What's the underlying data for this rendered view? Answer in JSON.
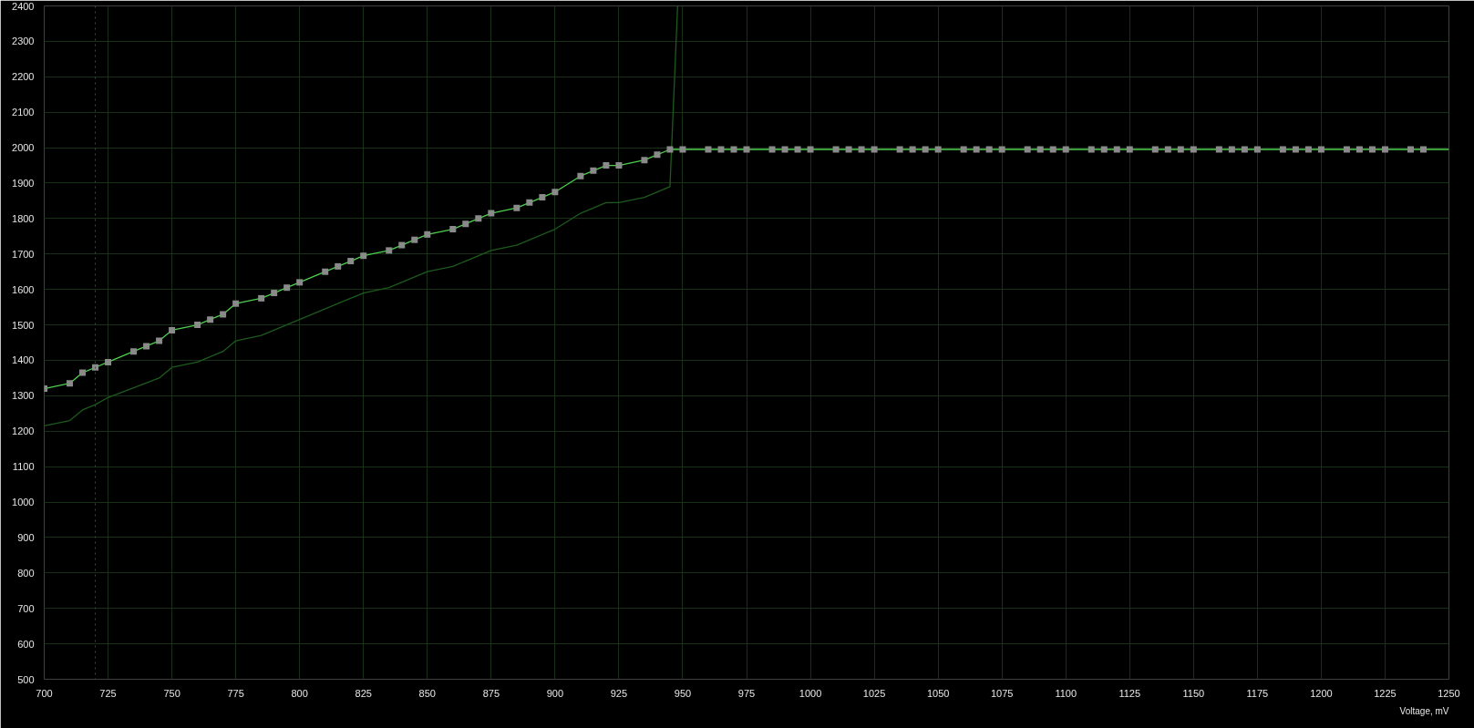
{
  "chart_data": {
    "type": "line",
    "xlabel": "Voltage, mV",
    "xlim": [
      700,
      1250
    ],
    "ylim": [
      500,
      2400
    ],
    "xticks": [
      700,
      725,
      750,
      775,
      800,
      825,
      850,
      875,
      900,
      925,
      950,
      975,
      1000,
      1025,
      1050,
      1075,
      1100,
      1125,
      1150,
      1175,
      1200,
      1225,
      1250
    ],
    "yticks": [
      500,
      600,
      700,
      800,
      900,
      1000,
      1100,
      1200,
      1300,
      1400,
      1500,
      1600,
      1700,
      1800,
      1900,
      2000,
      2100,
      2200,
      2300,
      2400
    ],
    "grid": true,
    "ref_lines": [
      {
        "axis": "x",
        "value": 720,
        "color": "#3c4a3c",
        "line_style": "dotted"
      }
    ],
    "series": [
      {
        "color": "#1d5a1d",
        "x": [
          700,
          710,
          715,
          720,
          725,
          745,
          750,
          760,
          770,
          775,
          785,
          800,
          815,
          825,
          835,
          850,
          860,
          875,
          885,
          900,
          910,
          920,
          925,
          935,
          945,
          948
        ],
        "values": [
          1215,
          1230,
          1260,
          1275,
          1295,
          1350,
          1380,
          1395,
          1425,
          1455,
          1470,
          1515,
          1560,
          1590,
          1605,
          1650,
          1665,
          1710,
          1725,
          1770,
          1815,
          1845,
          1845,
          1860,
          1890,
          2400
        ]
      },
      {
        "color": "#4fcf4f",
        "x": [
          700,
          710,
          715,
          720,
          725,
          735,
          740,
          745,
          750,
          760,
          765,
          770,
          775,
          785,
          790,
          795,
          800,
          810,
          815,
          820,
          825,
          835,
          840,
          845,
          850,
          860,
          865,
          870,
          875,
          885,
          890,
          895,
          900,
          910,
          915,
          920,
          925,
          935,
          940,
          945,
          950,
          960,
          965,
          970,
          975,
          985,
          990,
          995,
          1000,
          1010,
          1015,
          1020,
          1025,
          1035,
          1040,
          1045,
          1050,
          1060,
          1065,
          1070,
          1075,
          1085,
          1090,
          1095,
          1100,
          1110,
          1115,
          1120,
          1125,
          1135,
          1140,
          1145,
          1150,
          1160,
          1165,
          1170,
          1175,
          1185,
          1190,
          1195,
          1200,
          1210,
          1215,
          1220,
          1225,
          1235,
          1240,
          1250
        ],
        "values": [
          1320,
          1335,
          1365,
          1380,
          1395,
          1425,
          1440,
          1455,
          1485,
          1500,
          1515,
          1530,
          1560,
          1575,
          1590,
          1605,
          1620,
          1650,
          1665,
          1680,
          1695,
          1710,
          1725,
          1740,
          1755,
          1770,
          1785,
          1800,
          1815,
          1830,
          1845,
          1860,
          1875,
          1920,
          1935,
          1950,
          1950,
          1965,
          1980,
          1995,
          1995,
          1995,
          1995,
          1995,
          1995,
          1995,
          1995,
          1995,
          1995,
          1995,
          1995,
          1995,
          1995,
          1995,
          1995,
          1995,
          1995,
          1995,
          1995,
          1995,
          1995,
          1995,
          1995,
          1995,
          1995,
          1995,
          1995,
          1995,
          1995,
          1995,
          1995,
          1995,
          1995,
          1995,
          1995,
          1995,
          1995,
          1995,
          1995,
          1995,
          1995,
          1995,
          1995,
          1995,
          1995,
          1995,
          1995,
          1995
        ]
      },
      {
        "type": "scatter",
        "color": "#8a8a8a",
        "marker": "square",
        "x": [
          700,
          710,
          715,
          720,
          725,
          735,
          740,
          745,
          750,
          760,
          765,
          770,
          775,
          785,
          790,
          795,
          800,
          810,
          815,
          820,
          825,
          835,
          840,
          845,
          850,
          860,
          865,
          870,
          875,
          885,
          890,
          895,
          900,
          910,
          915,
          920,
          925,
          935,
          940,
          945,
          950,
          960,
          965,
          970,
          975,
          985,
          990,
          995,
          1000,
          1010,
          1015,
          1020,
          1025,
          1035,
          1040,
          1045,
          1050,
          1060,
          1065,
          1070,
          1075,
          1085,
          1090,
          1095,
          1100,
          1110,
          1115,
          1120,
          1125,
          1135,
          1140,
          1145,
          1150,
          1160,
          1165,
          1170,
          1175,
          1185,
          1190,
          1195,
          1200,
          1210,
          1215,
          1220,
          1225,
          1235,
          1240
        ],
        "values": [
          1320,
          1335,
          1365,
          1380,
          1395,
          1425,
          1440,
          1455,
          1485,
          1500,
          1515,
          1530,
          1560,
          1575,
          1590,
          1605,
          1620,
          1650,
          1665,
          1680,
          1695,
          1710,
          1725,
          1740,
          1755,
          1770,
          1785,
          1800,
          1815,
          1830,
          1845,
          1860,
          1875,
          1920,
          1935,
          1950,
          1950,
          1965,
          1980,
          1995,
          1995,
          1995,
          1995,
          1995,
          1995,
          1995,
          1995,
          1995,
          1995,
          1995,
          1995,
          1995,
          1995,
          1995,
          1995,
          1995,
          1995,
          1995,
          1995,
          1995,
          1995,
          1995,
          1995,
          1995,
          1995,
          1995,
          1995,
          1995,
          1995,
          1995,
          1995,
          1995,
          1995,
          1995,
          1995,
          1995,
          1995,
          1995,
          1995,
          1995,
          1995,
          1995,
          1995,
          1995,
          1995,
          1995,
          1995
        ]
      }
    ]
  }
}
